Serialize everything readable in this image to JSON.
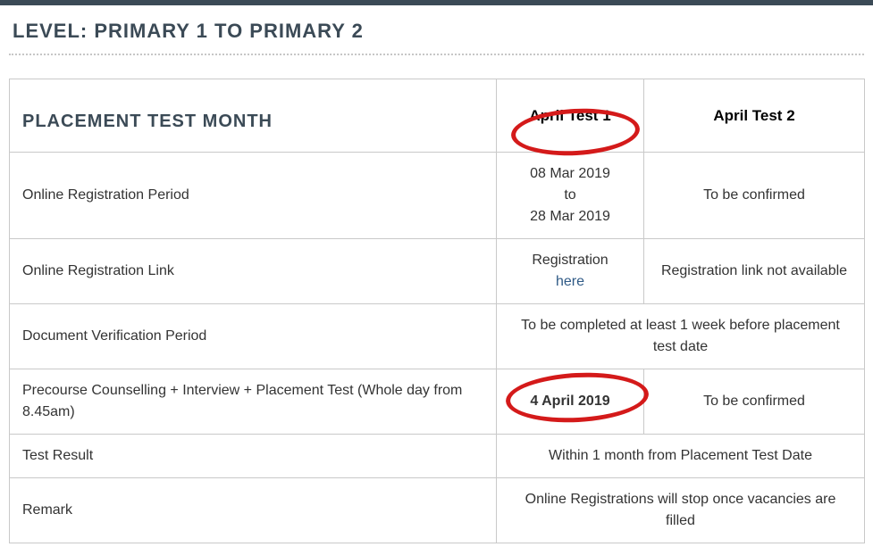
{
  "colors": {
    "heading": "#3b4a56",
    "border": "#c9c9c9",
    "link": "#2f5a86",
    "circle": "#d41a1a",
    "dotted": "#c6c6c6",
    "topbar": "#3b4a56",
    "text": "#333333"
  },
  "heading": "LEVEL: PRIMARY 1 TO PRIMARY 2",
  "table": {
    "header": {
      "col1": "PLACEMENT TEST MONTH",
      "col2": "April Test 1",
      "col3": "April Test 2"
    },
    "rows": {
      "reg_period": {
        "label": "Online Registration Period",
        "c2_line1": "08 Mar 2019",
        "c2_line2": "to",
        "c2_line3": "28 Mar 2019",
        "c3": "To be confirmed"
      },
      "reg_link": {
        "label": "Online Registration Link",
        "c2_line1": "Registration",
        "c2_link": "here",
        "c3": "Registration link not available"
      },
      "doc_verify": {
        "label": "Document Verification Period",
        "merged": "To be completed at least 1 week before placement test date"
      },
      "precourse": {
        "label": "Precourse Counselling + Interview + Placement Test (Whole day from 8.45am)",
        "c2": "4 April 2019",
        "c3": "To be confirmed"
      },
      "result": {
        "label": "Test Result",
        "merged": "Within 1 month from Placement Test Date"
      },
      "remark": {
        "label": "Remark",
        "merged": "Online Registrations will stop once vacancies are filled"
      }
    }
  },
  "annotations": {
    "circle1": {
      "target": "April Test 1 header",
      "color": "#d41a1a"
    },
    "circle2": {
      "target": "4 April 2019 cell",
      "color": "#d41a1a"
    }
  }
}
